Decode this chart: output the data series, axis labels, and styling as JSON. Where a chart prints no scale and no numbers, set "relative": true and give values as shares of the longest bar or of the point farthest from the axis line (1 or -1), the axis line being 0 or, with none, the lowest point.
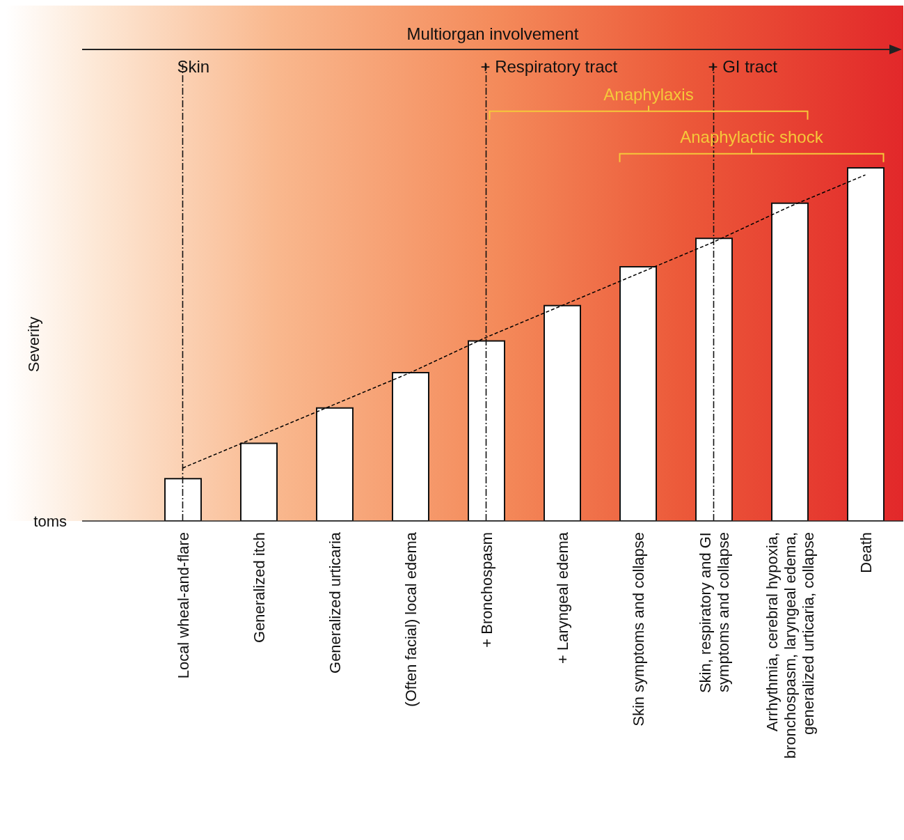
{
  "chart_data": {
    "type": "bar",
    "title": "Multiorgan involvement",
    "ylabel": "Severity",
    "relative": true,
    "categories": [
      "Local wheal-and-flare",
      "Generalized itch",
      "Generalized urticaria",
      "(Often facial) local edema",
      "+ Bronchospasm",
      "+ Laryngeal edema",
      "Skin symptoms and collapse",
      "Skin, respiratory and GI symptoms and collapse",
      "Arrhythmia, cerebral hypoxia, bronchospasm, laryngeal edema, generalized urticaria, collapse",
      "Death"
    ],
    "series": [
      {
        "color": "#ffffff",
        "values": [
          0.12,
          0.22,
          0.32,
          0.42,
          0.51,
          0.61,
          0.72,
          0.8,
          0.9,
          1
        ]
      },
      {
        "type": "line",
        "color": "#000000",
        "line_style": "dashed",
        "marker": "none",
        "values": [
          0.15,
          0.24,
          0.33,
          0.42,
          0.52,
          0.61,
          0.7,
          0.79,
          0.89,
          0.98
        ]
      }
    ],
    "ref_lines": [
      {
        "axis": "x",
        "value": "Local wheal-and-flare",
        "label": "Skin"
      },
      {
        "axis": "x",
        "value": "+ Bronchospasm",
        "label": "+ Respiratory tract"
      },
      {
        "axis": "x",
        "value": "Skin, respiratory and GI symptoms and collapse",
        "label": "+ GI tract"
      }
    ],
    "annotations": [
      "Anaphylaxis",
      "Anaphylactic shock",
      "toms"
    ]
  }
}
